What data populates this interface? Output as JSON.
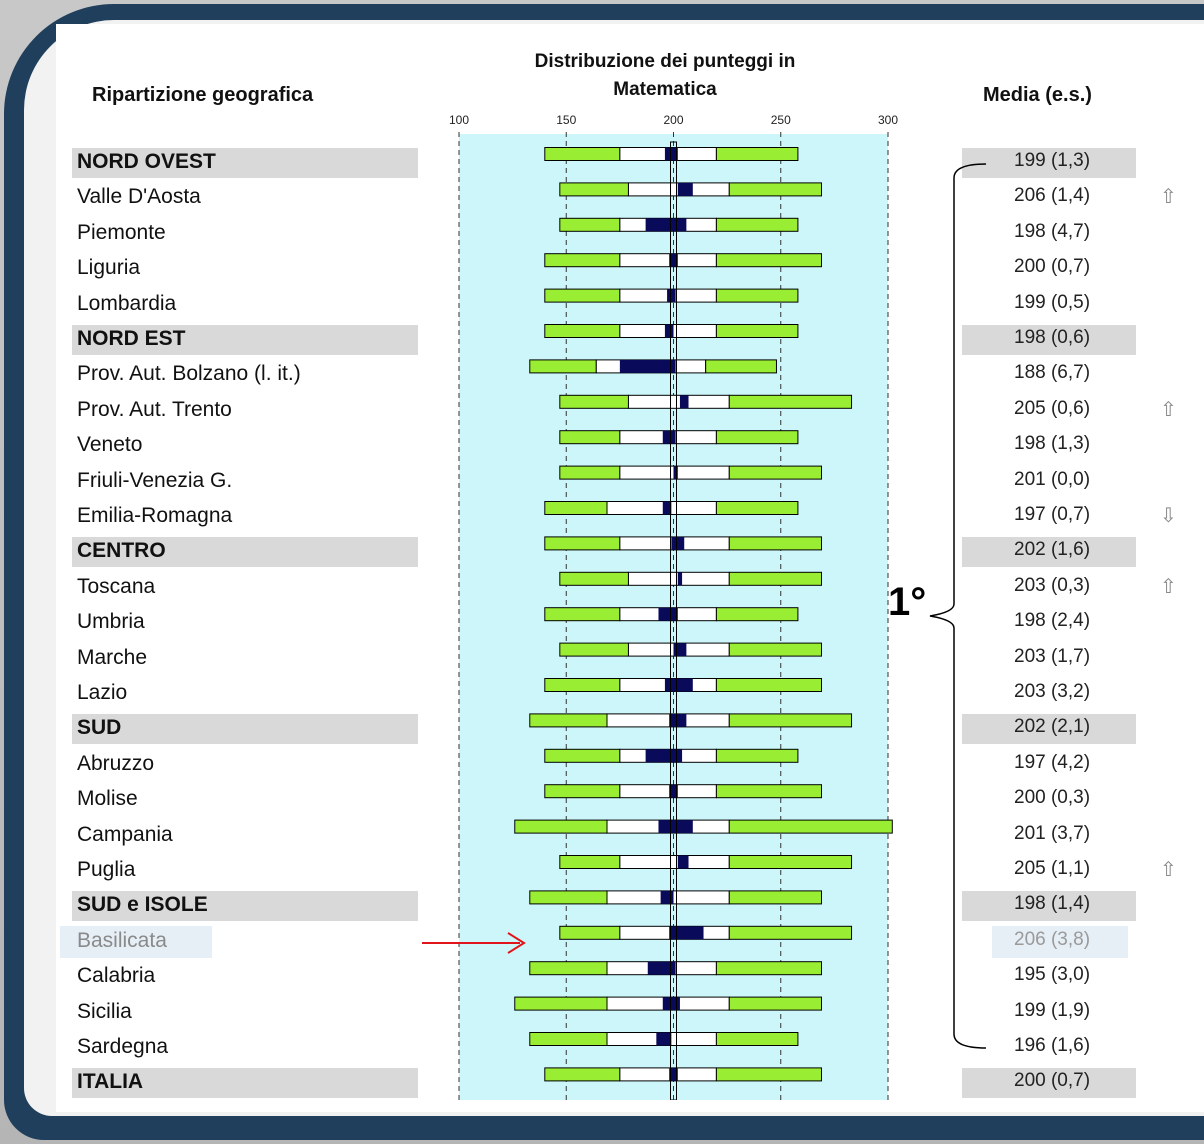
{
  "headers": {
    "left": "Ripartizione geografica",
    "middle_line1": "Distribuzione dei punteggi in",
    "middle_line2": "Matematica",
    "right": "Media (e.s.)"
  },
  "rank_label": "1°",
  "colors": {
    "green": "#99ee33",
    "navy": "#0a0a5a",
    "band": "#ccf6fa",
    "red_arrow": "#e0141a"
  },
  "chart_data": {
    "type": "boxplot-percentile",
    "title": "Distribuzione dei punteggi in Matematica",
    "xlim": [
      100,
      300
    ],
    "xticks": [
      100,
      150,
      200,
      250,
      300
    ],
    "reference_line": 200,
    "rows": [
      {
        "label": "NORD OVEST",
        "region": true,
        "p5": 140,
        "p25": 175,
        "ci_lo": 196,
        "ci_hi": 202,
        "p75": 220,
        "p95": 258,
        "value": "199 (1,3)",
        "arrow": ""
      },
      {
        "label": "Valle D'Aosta",
        "region": false,
        "p5": 147,
        "p25": 179,
        "ci_lo": 202,
        "ci_hi": 209,
        "p75": 226,
        "p95": 269,
        "value": "206 (1,4)",
        "arrow": "up"
      },
      {
        "label": "Piemonte",
        "region": false,
        "p5": 147,
        "p25": 175,
        "ci_lo": 187,
        "ci_hi": 206,
        "p75": 220,
        "p95": 258,
        "value": "198 (4,7)",
        "arrow": ""
      },
      {
        "label": "Liguria",
        "region": false,
        "p5": 140,
        "p25": 175,
        "ci_lo": 198,
        "ci_hi": 202,
        "p75": 220,
        "p95": 269,
        "value": "200 (0,7)",
        "arrow": ""
      },
      {
        "label": "Lombardia",
        "region": false,
        "p5": 140,
        "p25": 175,
        "ci_lo": 197,
        "ci_hi": 201,
        "p75": 220,
        "p95": 258,
        "value": "199 (0,5)",
        "arrow": ""
      },
      {
        "label": "NORD EST",
        "region": true,
        "p5": 140,
        "p25": 175,
        "ci_lo": 196,
        "ci_hi": 200,
        "p75": 220,
        "p95": 258,
        "value": "198 (0,6)",
        "arrow": ""
      },
      {
        "label": "Prov. Aut. Bolzano (l. it.)",
        "region": false,
        "p5": 133,
        "p25": 164,
        "ci_lo": 175,
        "ci_hi": 201,
        "p75": 215,
        "p95": 248,
        "value": "188 (6,7)",
        "arrow": ""
      },
      {
        "label": "Prov. Aut. Trento",
        "region": false,
        "p5": 147,
        "p25": 179,
        "ci_lo": 203,
        "ci_hi": 207,
        "p75": 226,
        "p95": 283,
        "value": "205 (0,6)",
        "arrow": "up"
      },
      {
        "label": "Veneto",
        "region": false,
        "p5": 147,
        "p25": 175,
        "ci_lo": 195,
        "ci_hi": 201,
        "p75": 220,
        "p95": 258,
        "value": "198 (1,3)",
        "arrow": ""
      },
      {
        "label": "Friuli-Venezia G.",
        "region": false,
        "p5": 147,
        "p25": 175,
        "ci_lo": 200,
        "ci_hi": 202,
        "p75": 226,
        "p95": 269,
        "value": "201 (0,0)",
        "arrow": ""
      },
      {
        "label": "Emilia-Romagna",
        "region": false,
        "p5": 140,
        "p25": 169,
        "ci_lo": 195,
        "ci_hi": 199,
        "p75": 220,
        "p95": 258,
        "value": "197 (0,7)",
        "arrow": "down"
      },
      {
        "label": "CENTRO",
        "region": true,
        "p5": 140,
        "p25": 175,
        "ci_lo": 199,
        "ci_hi": 205,
        "p75": 226,
        "p95": 269,
        "value": "202 (1,6)",
        "arrow": ""
      },
      {
        "label": "Toscana",
        "region": false,
        "p5": 147,
        "p25": 179,
        "ci_lo": 202,
        "ci_hi": 204,
        "p75": 226,
        "p95": 269,
        "value": "203 (0,3)",
        "arrow": "up"
      },
      {
        "label": "Umbria",
        "region": false,
        "p5": 140,
        "p25": 175,
        "ci_lo": 193,
        "ci_hi": 202,
        "p75": 220,
        "p95": 258,
        "value": "198 (2,4)",
        "arrow": ""
      },
      {
        "label": "Marche",
        "region": false,
        "p5": 147,
        "p25": 179,
        "ci_lo": 200,
        "ci_hi": 206,
        "p75": 226,
        "p95": 269,
        "value": "203 (1,7)",
        "arrow": ""
      },
      {
        "label": "Lazio",
        "region": false,
        "p5": 140,
        "p25": 175,
        "ci_lo": 196,
        "ci_hi": 209,
        "p75": 220,
        "p95": 269,
        "value": "203 (3,2)",
        "arrow": ""
      },
      {
        "label": "SUD",
        "region": true,
        "p5": 133,
        "p25": 169,
        "ci_lo": 198,
        "ci_hi": 206,
        "p75": 226,
        "p95": 283,
        "value": "202 (2,1)",
        "arrow": ""
      },
      {
        "label": "Abruzzo",
        "region": false,
        "p5": 140,
        "p25": 175,
        "ci_lo": 187,
        "ci_hi": 204,
        "p75": 220,
        "p95": 258,
        "value": "197 (4,2)",
        "arrow": ""
      },
      {
        "label": "Molise",
        "region": false,
        "p5": 140,
        "p25": 175,
        "ci_lo": 198,
        "ci_hi": 202,
        "p75": 220,
        "p95": 269,
        "value": "200 (0,3)",
        "arrow": ""
      },
      {
        "label": "Campania",
        "region": false,
        "p5": 126,
        "p25": 169,
        "ci_lo": 193,
        "ci_hi": 209,
        "p75": 226,
        "p95": 302,
        "value": "201 (3,7)",
        "arrow": ""
      },
      {
        "label": "Puglia",
        "region": false,
        "p5": 147,
        "p25": 175,
        "ci_lo": 202,
        "ci_hi": 207,
        "p75": 226,
        "p95": 283,
        "value": "205 (1,1)",
        "arrow": "up"
      },
      {
        "label": "SUD e ISOLE",
        "region": true,
        "p5": 133,
        "p25": 169,
        "ci_lo": 194,
        "ci_hi": 200,
        "p75": 226,
        "p95": 269,
        "value": "198 (1,4)",
        "arrow": ""
      },
      {
        "label": "Basilicata",
        "region": false,
        "faded": true,
        "p5": 147,
        "p25": 175,
        "ci_lo": 198,
        "ci_hi": 214,
        "p75": 226,
        "p95": 283,
        "value": "206 (3,8)",
        "arrow": ""
      },
      {
        "label": "Calabria",
        "region": false,
        "p5": 133,
        "p25": 169,
        "ci_lo": 188,
        "ci_hi": 201,
        "p75": 220,
        "p95": 269,
        "value": "195 (3,0)",
        "arrow": ""
      },
      {
        "label": "Sicilia",
        "region": false,
        "p5": 126,
        "p25": 169,
        "ci_lo": 195,
        "ci_hi": 203,
        "p75": 226,
        "p95": 269,
        "value": "199 (1,9)",
        "arrow": ""
      },
      {
        "label": "Sardegna",
        "region": false,
        "p5": 133,
        "p25": 169,
        "ci_lo": 192,
        "ci_hi": 199,
        "p75": 220,
        "p95": 258,
        "value": "196 (1,6)",
        "arrow": ""
      },
      {
        "label": "ITALIA",
        "region": true,
        "p5": 140,
        "p25": 175,
        "ci_lo": 198,
        "ci_hi": 202,
        "p75": 220,
        "p95": 269,
        "value": "200 (0,7)",
        "arrow": ""
      }
    ]
  }
}
